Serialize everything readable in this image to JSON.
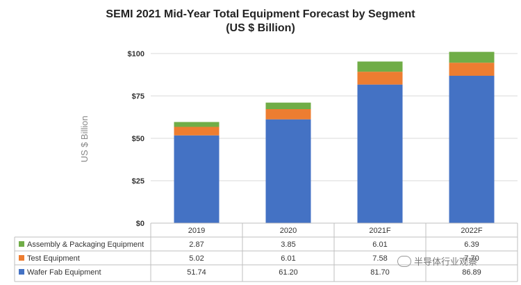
{
  "chart_data": {
    "type": "bar",
    "stacked": true,
    "title": "SEMI 2021 Mid-Year Total Equipment Forecast by Segment",
    "subtitle": "(US $ Billion)",
    "ylabel": "US $ Billion",
    "ylim": [
      0,
      100
    ],
    "yticks": [
      "$0",
      "$25",
      "$50",
      "$75",
      "$100"
    ],
    "categories": [
      "2019",
      "2020",
      "2021F",
      "2022F"
    ],
    "series": [
      {
        "name": "Wafer Fab Equipment",
        "color": "#4472C4",
        "values": [
          51.74,
          61.2,
          81.7,
          86.89
        ],
        "labels": [
          "51.74",
          "61.20",
          "81.70",
          "86.89"
        ]
      },
      {
        "name": "Test Equipment",
        "color": "#ED7D31",
        "values": [
          5.02,
          6.01,
          7.58,
          7.7
        ],
        "labels": [
          "5.02",
          "6.01",
          "7.58",
          "7.70"
        ]
      },
      {
        "name": "Assembly & Packaging Equipment",
        "color": "#70AD47",
        "values": [
          2.87,
          3.85,
          6.01,
          6.39
        ],
        "labels": [
          "2.87",
          "3.85",
          "6.01",
          "6.39"
        ]
      }
    ],
    "table_order": [
      "Assembly & Packaging Equipment",
      "Test Equipment",
      "Wafer Fab Equipment"
    ],
    "grid": true,
    "legend": "data-table"
  },
  "watermark": {
    "text": "半导体行业观察",
    "icon": "wechat-icon"
  }
}
